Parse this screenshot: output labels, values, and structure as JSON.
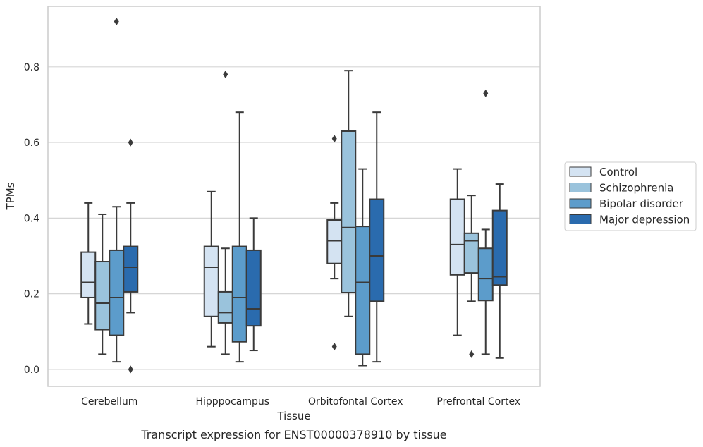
{
  "chart_data": {
    "type": "box",
    "title": "",
    "xlabel": "Tissue",
    "ylabel": "TPMs",
    "caption": "Transcript expression for ENST00000378910 by tissue",
    "categories": [
      "Cerebellum",
      "Hipppocampus",
      "Orbitofontal Cortex",
      "Prefrontal Cortex"
    ],
    "ylim": [
      -0.045,
      0.96
    ],
    "yticks": [
      0.0,
      0.2,
      0.4,
      0.6,
      0.8
    ],
    "ytick_labels": [
      "0.0",
      "0.2",
      "0.4",
      "0.6",
      "0.8"
    ],
    "grid": true,
    "legend_position": "right",
    "series": [
      {
        "name": "Control",
        "color": "#d4e3f2",
        "boxes": [
          {
            "whisker_low": 0.12,
            "q1": 0.19,
            "median": 0.23,
            "q3": 0.31,
            "whisker_high": 0.44,
            "outliers": []
          },
          {
            "whisker_low": 0.06,
            "q1": 0.14,
            "median": 0.27,
            "q3": 0.325,
            "whisker_high": 0.47,
            "outliers": []
          },
          {
            "whisker_low": 0.24,
            "q1": 0.28,
            "median": 0.34,
            "q3": 0.395,
            "whisker_high": 0.44,
            "outliers": [
              0.61,
              0.06
            ]
          },
          {
            "whisker_low": 0.09,
            "q1": 0.25,
            "median": 0.33,
            "q3": 0.45,
            "whisker_high": 0.53,
            "outliers": []
          }
        ]
      },
      {
        "name": "Schizophrenia",
        "color": "#9ac3dc",
        "boxes": [
          {
            "whisker_low": 0.04,
            "q1": 0.105,
            "median": 0.175,
            "q3": 0.285,
            "whisker_high": 0.41,
            "outliers": []
          },
          {
            "whisker_low": 0.04,
            "q1": 0.123,
            "median": 0.15,
            "q3": 0.205,
            "whisker_high": 0.32,
            "outliers": [
              0.78
            ]
          },
          {
            "whisker_low": 0.14,
            "q1": 0.203,
            "median": 0.375,
            "q3": 0.63,
            "whisker_high": 0.79,
            "outliers": []
          },
          {
            "whisker_low": 0.18,
            "q1": 0.255,
            "median": 0.34,
            "q3": 0.36,
            "whisker_high": 0.46,
            "outliers": [
              0.04
            ]
          }
        ]
      },
      {
        "name": "Bipolar disorder",
        "color": "#5c9ccb",
        "boxes": [
          {
            "whisker_low": 0.02,
            "q1": 0.09,
            "median": 0.19,
            "q3": 0.315,
            "whisker_high": 0.43,
            "outliers": [
              0.92
            ]
          },
          {
            "whisker_low": 0.02,
            "q1": 0.073,
            "median": 0.19,
            "q3": 0.325,
            "whisker_high": 0.68,
            "outliers": []
          },
          {
            "whisker_low": 0.01,
            "q1": 0.04,
            "median": 0.23,
            "q3": 0.378,
            "whisker_high": 0.53,
            "outliers": []
          },
          {
            "whisker_low": 0.04,
            "q1": 0.182,
            "median": 0.24,
            "q3": 0.32,
            "whisker_high": 0.37,
            "outliers": [
              0.73
            ]
          }
        ]
      },
      {
        "name": "Major depression",
        "color": "#2a6bae",
        "boxes": [
          {
            "whisker_low": 0.15,
            "q1": 0.205,
            "median": 0.27,
            "q3": 0.325,
            "whisker_high": 0.44,
            "outliers": [
              0.6,
              0.0
            ]
          },
          {
            "whisker_low": 0.05,
            "q1": 0.115,
            "median": 0.16,
            "q3": 0.315,
            "whisker_high": 0.4,
            "outliers": []
          },
          {
            "whisker_low": 0.02,
            "q1": 0.18,
            "median": 0.3,
            "q3": 0.45,
            "whisker_high": 0.68,
            "outliers": []
          },
          {
            "whisker_low": 0.03,
            "q1": 0.223,
            "median": 0.245,
            "q3": 0.42,
            "whisker_high": 0.49,
            "outliers": []
          }
        ]
      }
    ]
  }
}
